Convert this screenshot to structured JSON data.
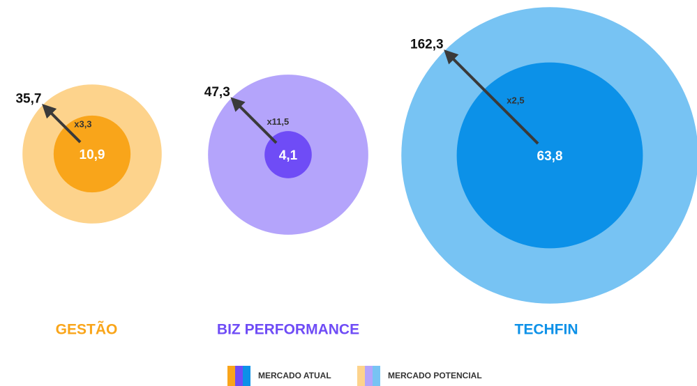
{
  "chart_data": {
    "type": "nested-bubble",
    "categories": [
      "GESTÃO",
      "BIZ PERFORMANCE",
      "TECHFIN"
    ],
    "series": [
      {
        "name": "MERCADO ATUAL",
        "colors": [
          "#f9a51a",
          "#6f4cf6",
          "#0c91e8"
        ],
        "values": [
          10.9,
          4.1,
          63.8
        ],
        "value_labels": [
          "10,9",
          "4,1",
          "63,8"
        ]
      },
      {
        "name": "MERCADO POTENCIAL",
        "colors": [
          "#fdd38c",
          "#b4a4fb",
          "#77c3f3"
        ],
        "values": [
          35.7,
          47.3,
          162.3
        ],
        "value_labels": [
          "35,7",
          "47,3",
          "162,3"
        ]
      }
    ],
    "multipliers": [
      "x3,3",
      "x11,5",
      "x2,5"
    ]
  }
}
